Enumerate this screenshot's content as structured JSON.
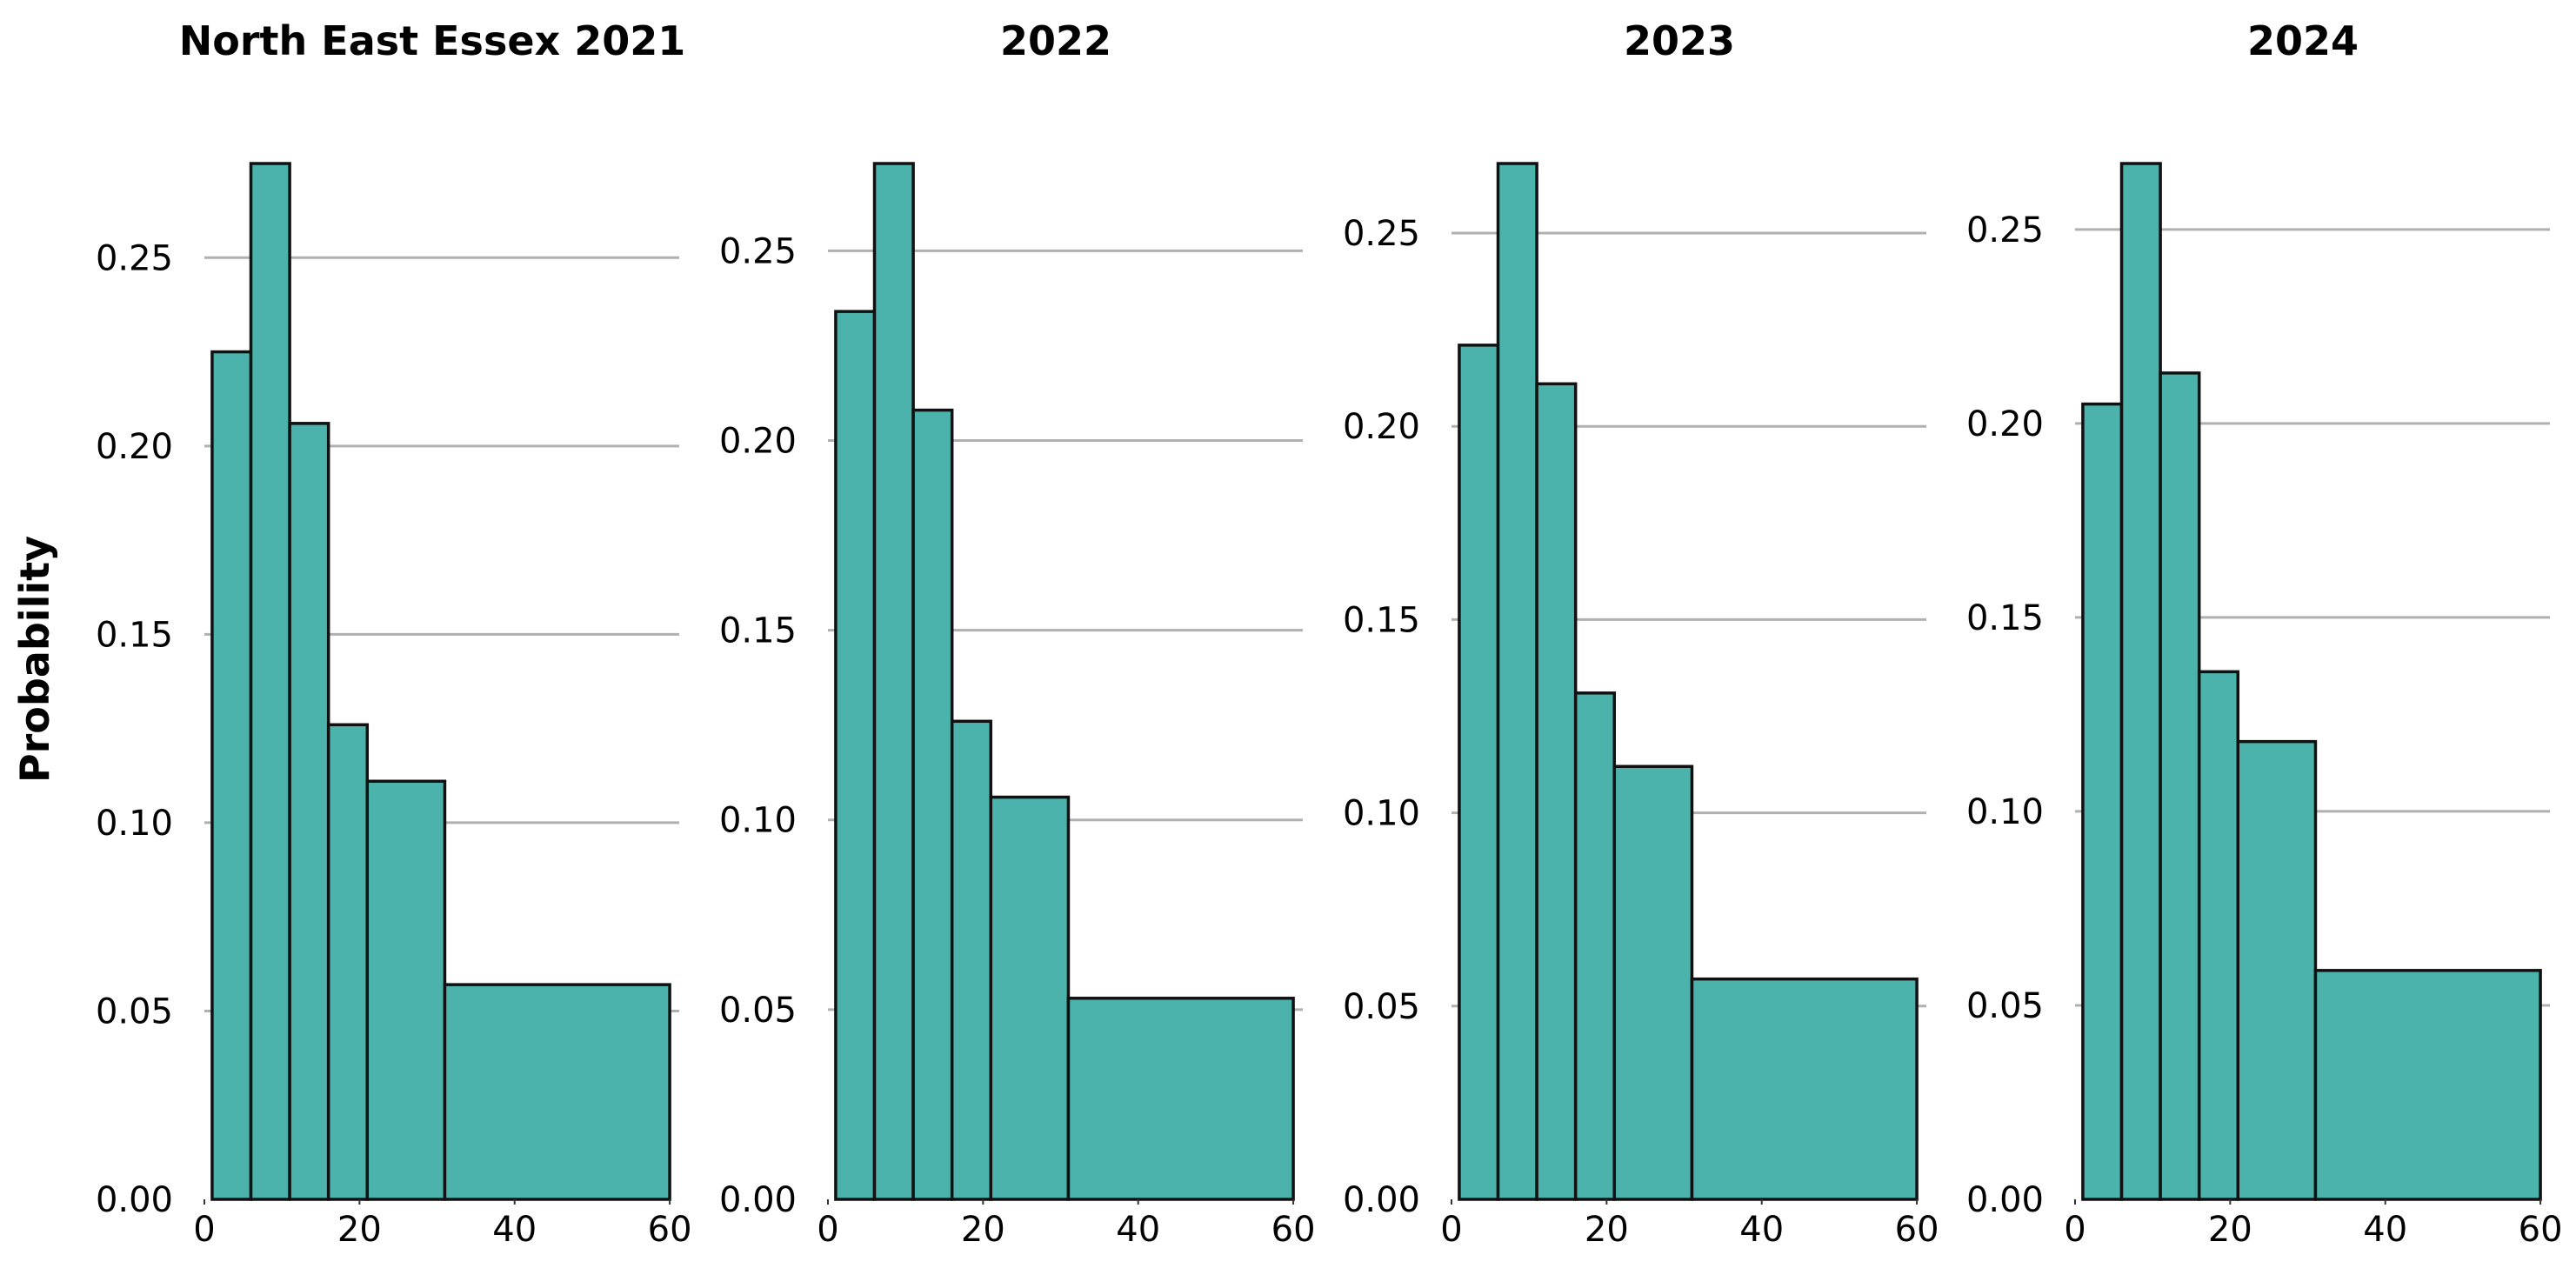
{
  "chart_data": {
    "type": "bar",
    "subtype": "histogram",
    "bar_color": "#4bb3ac",
    "edge_color": "#111111",
    "grid": "horizontal",
    "legend": "none",
    "ylabel": "Probability",
    "bin_edges": [
      1,
      6,
      11,
      16,
      21,
      31,
      60
    ],
    "xlim": [
      0,
      61
    ],
    "xticks": [
      "0",
      "20",
      "40",
      "60"
    ],
    "xtick_values": [
      0,
      20,
      40,
      60
    ],
    "yticks": [
      "0.00",
      "0.05",
      "0.10",
      "0.15",
      "0.20",
      "0.25"
    ],
    "ytick_values": [
      0,
      0.05,
      0.1,
      0.15,
      0.2,
      0.25
    ],
    "panels": [
      {
        "title": "North East Essex 2021",
        "values": [
          0.225,
          0.275,
          0.206,
          0.126,
          0.111,
          0.057
        ],
        "ylim": [
          0,
          0.275
        ]
      },
      {
        "title": "2022",
        "values": [
          0.234,
          0.273,
          0.208,
          0.126,
          0.106,
          0.053
        ],
        "ylim": [
          0,
          0.273
        ]
      },
      {
        "title": "2023",
        "values": [
          0.221,
          0.268,
          0.211,
          0.131,
          0.112,
          0.057
        ],
        "ylim": [
          0,
          0.268
        ]
      },
      {
        "title": "2024",
        "values": [
          0.205,
          0.267,
          0.213,
          0.136,
          0.118,
          0.059
        ],
        "ylim": [
          0,
          0.267
        ]
      }
    ]
  }
}
